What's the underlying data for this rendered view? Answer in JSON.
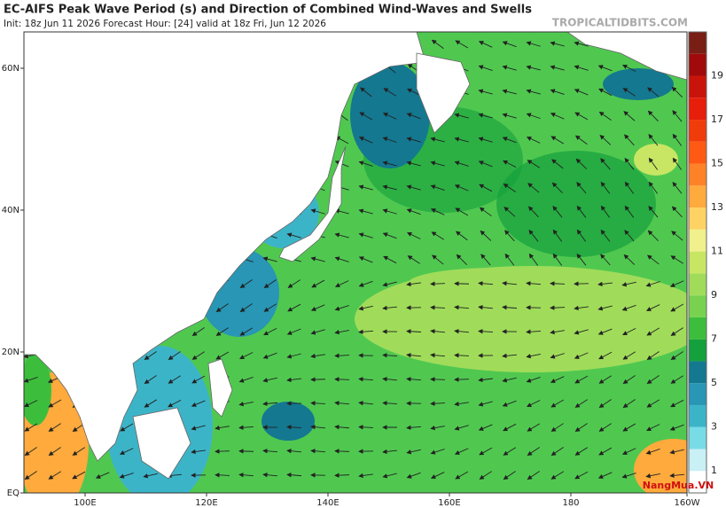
{
  "header": {
    "title": "EC-AIFS Peak Wave Period (s) and Direction of Combined Wind-Waves and Swells",
    "subtitle": "Init: 18z Jun 11 2026   Forecast Hour: [24]   valid at 18z Fri, Jun 12 2026",
    "site": "TROPICALTIDBITS.COM"
  },
  "map": {
    "lat_labels": [
      "60N",
      "40N",
      "20N",
      "EQ"
    ],
    "lon_labels": [
      "100E",
      "120E",
      "140E",
      "160E",
      "180",
      "160W"
    ]
  },
  "colorbar": {
    "labels": [
      "1",
      "3",
      "5",
      "7",
      "9",
      "11",
      "13",
      "15",
      "17",
      "19"
    ],
    "colors": [
      "#ffffff",
      "#c8f0f5",
      "#78dce6",
      "#3cb4c8",
      "#2896b4",
      "#147890",
      "#14a03c",
      "#3cbe3c",
      "#78d250",
      "#a0dc5a",
      "#c8e664",
      "#f0f08c",
      "#ffd264",
      "#ffaa3c",
      "#ff8228",
      "#ff5a14",
      "#f03c0a",
      "#e61e0a",
      "#c8140a",
      "#a00a0a",
      "#781e14"
    ]
  },
  "watermark": "NangMua.VN"
}
